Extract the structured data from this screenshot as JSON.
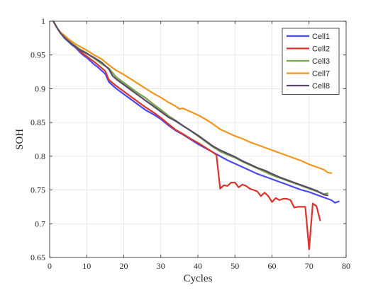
{
  "chart_data": {
    "type": "line",
    "xlabel": "Cycles",
    "ylabel": "SOH",
    "xlim": [
      0,
      80
    ],
    "ylim": [
      0.65,
      1.0
    ],
    "xticks": [
      0,
      10,
      20,
      30,
      40,
      50,
      60,
      70,
      80
    ],
    "yticks": [
      0.65,
      0.7,
      0.75,
      0.8,
      0.85,
      0.9,
      0.95,
      1.0
    ],
    "ytick_labels": [
      "0.65",
      "0.7",
      "0.75",
      "0.8",
      "0.85",
      "0.9",
      "0.95",
      "1"
    ],
    "grid": true,
    "legend_position": "top-right",
    "series": [
      {
        "name": "Cell1",
        "color": "#4a4af0",
        "x": [
          1,
          2,
          3,
          4,
          5,
          6,
          7,
          8,
          9,
          10,
          11,
          12,
          13,
          14,
          15,
          16,
          17,
          18,
          19,
          20,
          22,
          24,
          26,
          28,
          30,
          32,
          34,
          36,
          38,
          40,
          42,
          44,
          46,
          48,
          50,
          52,
          54,
          56,
          58,
          60,
          62,
          64,
          66,
          68,
          70,
          72,
          74,
          76,
          77,
          78
        ],
        "y": [
          1.0,
          0.99,
          0.982,
          0.975,
          0.97,
          0.965,
          0.961,
          0.955,
          0.95,
          0.946,
          0.941,
          0.936,
          0.932,
          0.927,
          0.922,
          0.91,
          0.905,
          0.9,
          0.896,
          0.892,
          0.884,
          0.876,
          0.868,
          0.862,
          0.855,
          0.846,
          0.838,
          0.832,
          0.825,
          0.818,
          0.812,
          0.806,
          0.8,
          0.794,
          0.789,
          0.784,
          0.779,
          0.774,
          0.77,
          0.766,
          0.762,
          0.758,
          0.754,
          0.75,
          0.747,
          0.743,
          0.739,
          0.735,
          0.731,
          0.733
        ]
      },
      {
        "name": "Cell2",
        "color": "#d9342b",
        "x": [
          1,
          2,
          3,
          4,
          5,
          6,
          7,
          8,
          9,
          10,
          12,
          14,
          15,
          16,
          18,
          20,
          22,
          24,
          26,
          28,
          30,
          32,
          34,
          36,
          38,
          40,
          42,
          44,
          45,
          46,
          47,
          48,
          49,
          50,
          51,
          52,
          53,
          54,
          55,
          56,
          57,
          58,
          59,
          60,
          61,
          62,
          63,
          64,
          65,
          66,
          67,
          68,
          69,
          70,
          71,
          72,
          73
        ],
        "y": [
          1.0,
          0.99,
          0.982,
          0.976,
          0.971,
          0.967,
          0.962,
          0.957,
          0.952,
          0.948,
          0.94,
          0.931,
          0.926,
          0.913,
          0.904,
          0.896,
          0.888,
          0.88,
          0.872,
          0.865,
          0.857,
          0.848,
          0.839,
          0.833,
          0.826,
          0.82,
          0.813,
          0.806,
          0.802,
          0.752,
          0.757,
          0.756,
          0.761,
          0.761,
          0.754,
          0.758,
          0.756,
          0.752,
          0.75,
          0.748,
          0.741,
          0.746,
          0.741,
          0.732,
          0.738,
          0.735,
          0.737,
          0.737,
          0.735,
          0.724,
          0.725,
          0.725,
          0.725,
          0.662,
          0.73,
          0.726,
          0.705
        ]
      },
      {
        "name": "Cell3",
        "color": "#78a64a",
        "x": [
          1,
          2,
          3,
          4,
          5,
          6,
          7,
          8,
          10,
          12,
          14,
          16,
          18,
          20,
          22,
          24,
          26,
          28,
          30,
          32,
          34,
          36,
          38,
          40,
          42,
          44,
          46,
          48,
          50,
          52,
          54,
          56,
          58,
          60,
          62,
          64,
          66,
          68,
          70,
          72,
          74,
          75
        ],
        "y": [
          1.0,
          0.99,
          0.982,
          0.976,
          0.971,
          0.967,
          0.963,
          0.959,
          0.953,
          0.945,
          0.937,
          0.93,
          0.917,
          0.909,
          0.901,
          0.893,
          0.886,
          0.877,
          0.869,
          0.86,
          0.853,
          0.845,
          0.838,
          0.83,
          0.822,
          0.814,
          0.807,
          0.802,
          0.798,
          0.792,
          0.787,
          0.782,
          0.777,
          0.772,
          0.768,
          0.764,
          0.76,
          0.756,
          0.752,
          0.748,
          0.744,
          0.745
        ]
      },
      {
        "name": "Cell7",
        "color": "#f0961e",
        "x": [
          1,
          2,
          3,
          4,
          5,
          6,
          7,
          8,
          10,
          12,
          14,
          16,
          18,
          20,
          22,
          24,
          26,
          28,
          30,
          32,
          34,
          35,
          36,
          38,
          40,
          42,
          44,
          46,
          48,
          50,
          52,
          54,
          56,
          58,
          60,
          62,
          64,
          66,
          68,
          70,
          72,
          74,
          75,
          76
        ],
        "y": [
          1.0,
          0.99,
          0.983,
          0.979,
          0.974,
          0.97,
          0.966,
          0.963,
          0.957,
          0.95,
          0.944,
          0.935,
          0.927,
          0.921,
          0.914,
          0.907,
          0.9,
          0.893,
          0.887,
          0.88,
          0.874,
          0.87,
          0.871,
          0.866,
          0.861,
          0.855,
          0.848,
          0.84,
          0.835,
          0.83,
          0.826,
          0.821,
          0.817,
          0.813,
          0.809,
          0.805,
          0.801,
          0.797,
          0.793,
          0.788,
          0.784,
          0.78,
          0.776,
          0.775
        ]
      },
      {
        "name": "Cell8",
        "color": "#5a4a6a",
        "x": [
          1,
          2,
          3,
          4,
          5,
          6,
          7,
          8,
          10,
          12,
          14,
          16,
          17,
          18,
          20,
          22,
          24,
          26,
          28,
          30,
          32,
          34,
          36,
          38,
          40,
          42,
          44,
          46,
          48,
          50,
          52,
          54,
          56,
          58,
          60,
          62,
          64,
          66,
          68,
          70,
          72,
          74,
          75
        ],
        "y": [
          1.0,
          0.99,
          0.982,
          0.976,
          0.971,
          0.966,
          0.962,
          0.958,
          0.952,
          0.946,
          0.939,
          0.929,
          0.919,
          0.914,
          0.906,
          0.898,
          0.89,
          0.882,
          0.874,
          0.866,
          0.858,
          0.852,
          0.845,
          0.838,
          0.831,
          0.823,
          0.815,
          0.809,
          0.804,
          0.799,
          0.793,
          0.788,
          0.783,
          0.779,
          0.774,
          0.769,
          0.765,
          0.761,
          0.757,
          0.753,
          0.749,
          0.743,
          0.742
        ]
      }
    ]
  }
}
